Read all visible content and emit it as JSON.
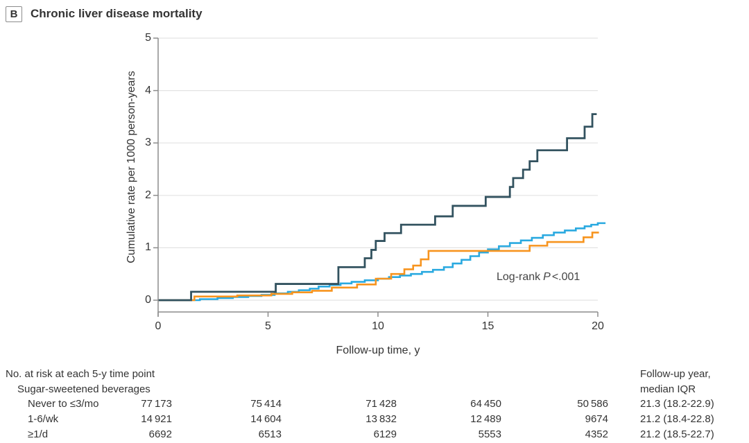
{
  "panel": {
    "letter": "B",
    "title": "Chronic liver disease mortality"
  },
  "colors": {
    "navy": "#32525F",
    "light_blue": "#29A9E0",
    "orange": "#F7941E",
    "gridline": "#E3E3E3",
    "axis": "#8C8C8C",
    "text": "#333333"
  },
  "chart_data": {
    "type": "line",
    "subtype": "step-cumulative-incidence",
    "title": "Chronic liver disease mortality",
    "xlabel": "Follow-up time, y",
    "ylabel": "Cumulative rate per 1000 person-years",
    "xlim": [
      0,
      20
    ],
    "ylim": [
      0,
      5
    ],
    "xticks": [
      0,
      5,
      10,
      15,
      20
    ],
    "yticks": [
      0,
      1,
      2,
      3,
      4,
      5
    ],
    "grid": "horizontal-only",
    "legend_position": "none",
    "annotation": {
      "prefix": "Log-rank",
      "p": "P",
      "value": "<.001"
    },
    "series": [
      {
        "name": "navy-curve",
        "color": "#32525F",
        "width": 2.8,
        "z": 3,
        "start": [
          0,
          0
        ],
        "end": 19.95,
        "steps": [
          [
            1.5,
            0.16
          ],
          [
            5.35,
            0.31
          ],
          [
            8.2,
            0.63
          ],
          [
            9.4,
            0.8
          ],
          [
            9.7,
            0.96
          ],
          [
            9.9,
            1.13
          ],
          [
            10.3,
            1.28
          ],
          [
            11.05,
            1.44
          ],
          [
            12.6,
            1.6
          ],
          [
            13.4,
            1.8
          ],
          [
            14.9,
            1.97
          ],
          [
            16.0,
            2.16
          ],
          [
            16.15,
            2.33
          ],
          [
            16.6,
            2.49
          ],
          [
            16.9,
            2.65
          ],
          [
            17.25,
            2.86
          ],
          [
            18.6,
            3.09
          ],
          [
            19.4,
            3.31
          ],
          [
            19.75,
            3.55
          ]
        ]
      },
      {
        "name": "orange-curve",
        "color": "#F7941E",
        "width": 2.6,
        "z": 2,
        "start": [
          0,
          0
        ],
        "end": 20.05,
        "steps": [
          [
            1.65,
            0.07
          ],
          [
            3.6,
            0.09
          ],
          [
            5.15,
            0.12
          ],
          [
            6.1,
            0.15
          ],
          [
            7.0,
            0.18
          ],
          [
            7.9,
            0.24
          ],
          [
            9.05,
            0.3
          ],
          [
            9.9,
            0.41
          ],
          [
            10.6,
            0.5
          ],
          [
            11.2,
            0.59
          ],
          [
            11.6,
            0.66
          ],
          [
            11.95,
            0.78
          ],
          [
            12.3,
            0.94
          ],
          [
            16.9,
            1.04
          ],
          [
            17.7,
            1.11
          ],
          [
            19.35,
            1.2
          ],
          [
            19.75,
            1.29
          ]
        ]
      },
      {
        "name": "light-blue-curve",
        "color": "#29A9E0",
        "width": 2.6,
        "z": 1,
        "start": [
          0,
          0
        ],
        "end": 20.35,
        "steps": [
          [
            1.9,
            0.02
          ],
          [
            2.7,
            0.04
          ],
          [
            3.4,
            0.06
          ],
          [
            4.1,
            0.08
          ],
          [
            4.7,
            0.1
          ],
          [
            5.3,
            0.13
          ],
          [
            5.9,
            0.16
          ],
          [
            6.4,
            0.19
          ],
          [
            6.9,
            0.22
          ],
          [
            7.3,
            0.26
          ],
          [
            7.8,
            0.29
          ],
          [
            8.3,
            0.32
          ],
          [
            8.8,
            0.35
          ],
          [
            9.4,
            0.38
          ],
          [
            10.0,
            0.41
          ],
          [
            10.5,
            0.44
          ],
          [
            11.0,
            0.47
          ],
          [
            11.5,
            0.5
          ],
          [
            12.0,
            0.54
          ],
          [
            12.5,
            0.58
          ],
          [
            13.0,
            0.63
          ],
          [
            13.4,
            0.7
          ],
          [
            13.8,
            0.77
          ],
          [
            14.2,
            0.84
          ],
          [
            14.6,
            0.91
          ],
          [
            15.0,
            0.97
          ],
          [
            15.5,
            1.03
          ],
          [
            16.0,
            1.09
          ],
          [
            16.5,
            1.14
          ],
          [
            17.0,
            1.19
          ],
          [
            17.5,
            1.24
          ],
          [
            18.0,
            1.29
          ],
          [
            18.5,
            1.33
          ],
          [
            19.0,
            1.37
          ],
          [
            19.4,
            1.41
          ],
          [
            19.7,
            1.44
          ],
          [
            20.0,
            1.47
          ]
        ]
      }
    ]
  },
  "risk_table": {
    "title": "No. at risk at each 5-y time point",
    "group_label": "Sugar-sweetened beverages",
    "followup_header_line1": "Follow-up year,",
    "followup_header_line2": "median IQR",
    "time_points": [
      0,
      5,
      10,
      15,
      20
    ],
    "rows": [
      {
        "label": "Never to ≤3/mo",
        "counts": [
          "77 173",
          "75 414",
          "71 428",
          "64 450",
          "50 586"
        ],
        "followup": "21.3 (18.2-22.9)"
      },
      {
        "label": "1-6/wk",
        "counts": [
          "14 921",
          "14 604",
          "13 832",
          "12 489",
          "9674"
        ],
        "followup": "21.2 (18.4-22.8)"
      },
      {
        "label": "≥1/d",
        "counts": [
          "6692",
          "6513",
          "6129",
          "5553",
          "4352"
        ],
        "followup": "21.2 (18.5-22.7)"
      }
    ]
  }
}
